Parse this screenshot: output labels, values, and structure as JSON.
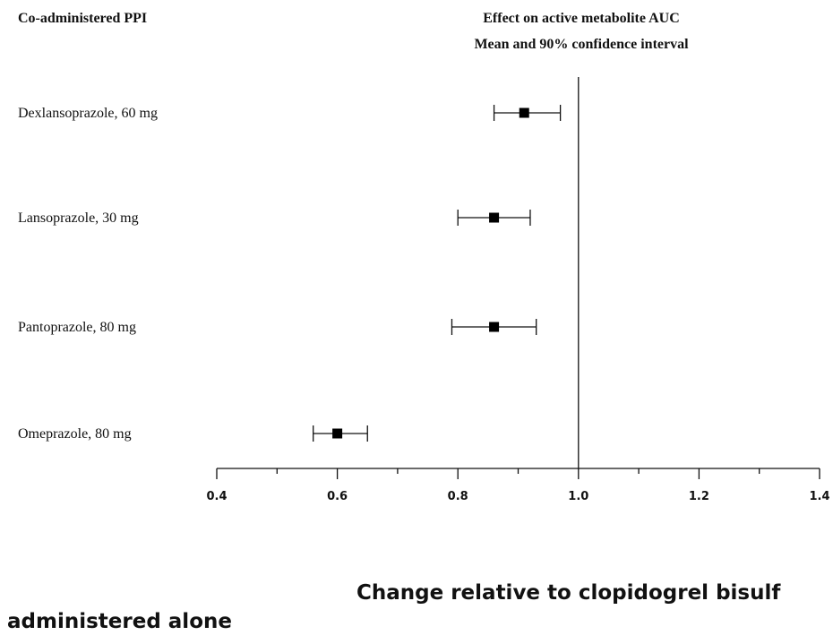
{
  "chart_data": {
    "type": "forest",
    "column_header": "Co-administered PPI",
    "title_lines": [
      "Effect on active metabolite AUC",
      "Mean and 90% confidence interval"
    ],
    "rows": [
      {
        "label": "Dexlansoprazole, 60 mg",
        "mean": 0.91,
        "ci_low": 0.86,
        "ci_high": 0.97
      },
      {
        "label": "Lansoprazole, 30 mg",
        "mean": 0.86,
        "ci_low": 0.8,
        "ci_high": 0.92
      },
      {
        "label": "Pantoprazole, 80 mg",
        "mean": 0.86,
        "ci_low": 0.79,
        "ci_high": 0.93
      },
      {
        "label": "Omeprazole, 80 mg",
        "mean": 0.6,
        "ci_low": 0.56,
        "ci_high": 0.65
      }
    ],
    "xlim": [
      0.4,
      1.4
    ],
    "x_ticks": [
      "0.4",
      "0.6",
      "0.8",
      "1.0",
      "1.2",
      "1.4"
    ],
    "reference_line": 1.0,
    "xlabel_lines": [
      "Change relative to clopidogrel bisulf",
      "administered alone"
    ],
    "grid": false
  }
}
